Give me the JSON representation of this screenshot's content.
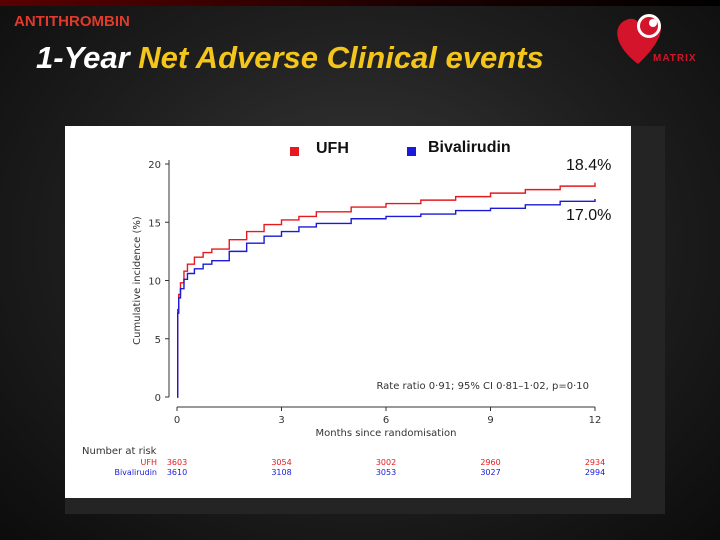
{
  "slide": {
    "tag": "ANTITHROMBIN",
    "title_part1": "1-Year",
    "title_part2": "Net Adverse Clinical events",
    "logo_text": "MATRIX"
  },
  "chart_data": {
    "type": "line",
    "xlabel": "Months since randomisation",
    "ylabel": "Cumulative incidence (%)",
    "xlim": [
      0,
      12
    ],
    "ylim": [
      0,
      20
    ],
    "xticks": [
      0,
      3,
      6,
      9,
      12
    ],
    "yticks": [
      0,
      5,
      10,
      15,
      20
    ],
    "legend_position": "top",
    "annotation": "Rate ratio 0·91; 95% CI 0·81–1·02, p=0·10",
    "series": [
      {
        "name": "UFH",
        "color": "#e8191e",
        "end_label": "18.4%",
        "x": [
          0,
          0.02,
          0.05,
          0.1,
          0.2,
          0.3,
          0.5,
          0.75,
          1,
          1.5,
          2,
          2.5,
          3,
          3.5,
          4,
          5,
          6,
          7,
          8,
          9,
          10,
          11,
          12
        ],
        "y": [
          0,
          7.5,
          8.8,
          9.8,
          10.8,
          11.4,
          12.0,
          12.4,
          12.7,
          13.5,
          14.2,
          14.8,
          15.2,
          15.5,
          15.9,
          16.3,
          16.6,
          16.9,
          17.2,
          17.5,
          17.8,
          18.1,
          18.4
        ]
      },
      {
        "name": "Bivalirudin",
        "color": "#1a1ad8",
        "end_label": "17.0%",
        "x": [
          0,
          0.02,
          0.05,
          0.1,
          0.2,
          0.3,
          0.5,
          0.75,
          1,
          1.5,
          2,
          2.5,
          3,
          3.5,
          4,
          5,
          6,
          7,
          8,
          9,
          10,
          11,
          12
        ],
        "y": [
          0,
          7.2,
          8.5,
          9.3,
          10.1,
          10.6,
          11.0,
          11.4,
          11.7,
          12.5,
          13.2,
          13.8,
          14.2,
          14.6,
          14.9,
          15.3,
          15.5,
          15.7,
          16.0,
          16.2,
          16.5,
          16.8,
          17.0
        ]
      }
    ],
    "risk_table": {
      "title": "Number at risk",
      "rows": [
        {
          "label": "UFH",
          "color": "#e8191e",
          "values": [
            "3603",
            "3054",
            "3002",
            "2960",
            "2934"
          ]
        },
        {
          "label": "Bivalirudin",
          "color": "#1a1ad8",
          "values": [
            "3610",
            "3108",
            "3053",
            "3027",
            "2994"
          ]
        }
      ]
    }
  }
}
